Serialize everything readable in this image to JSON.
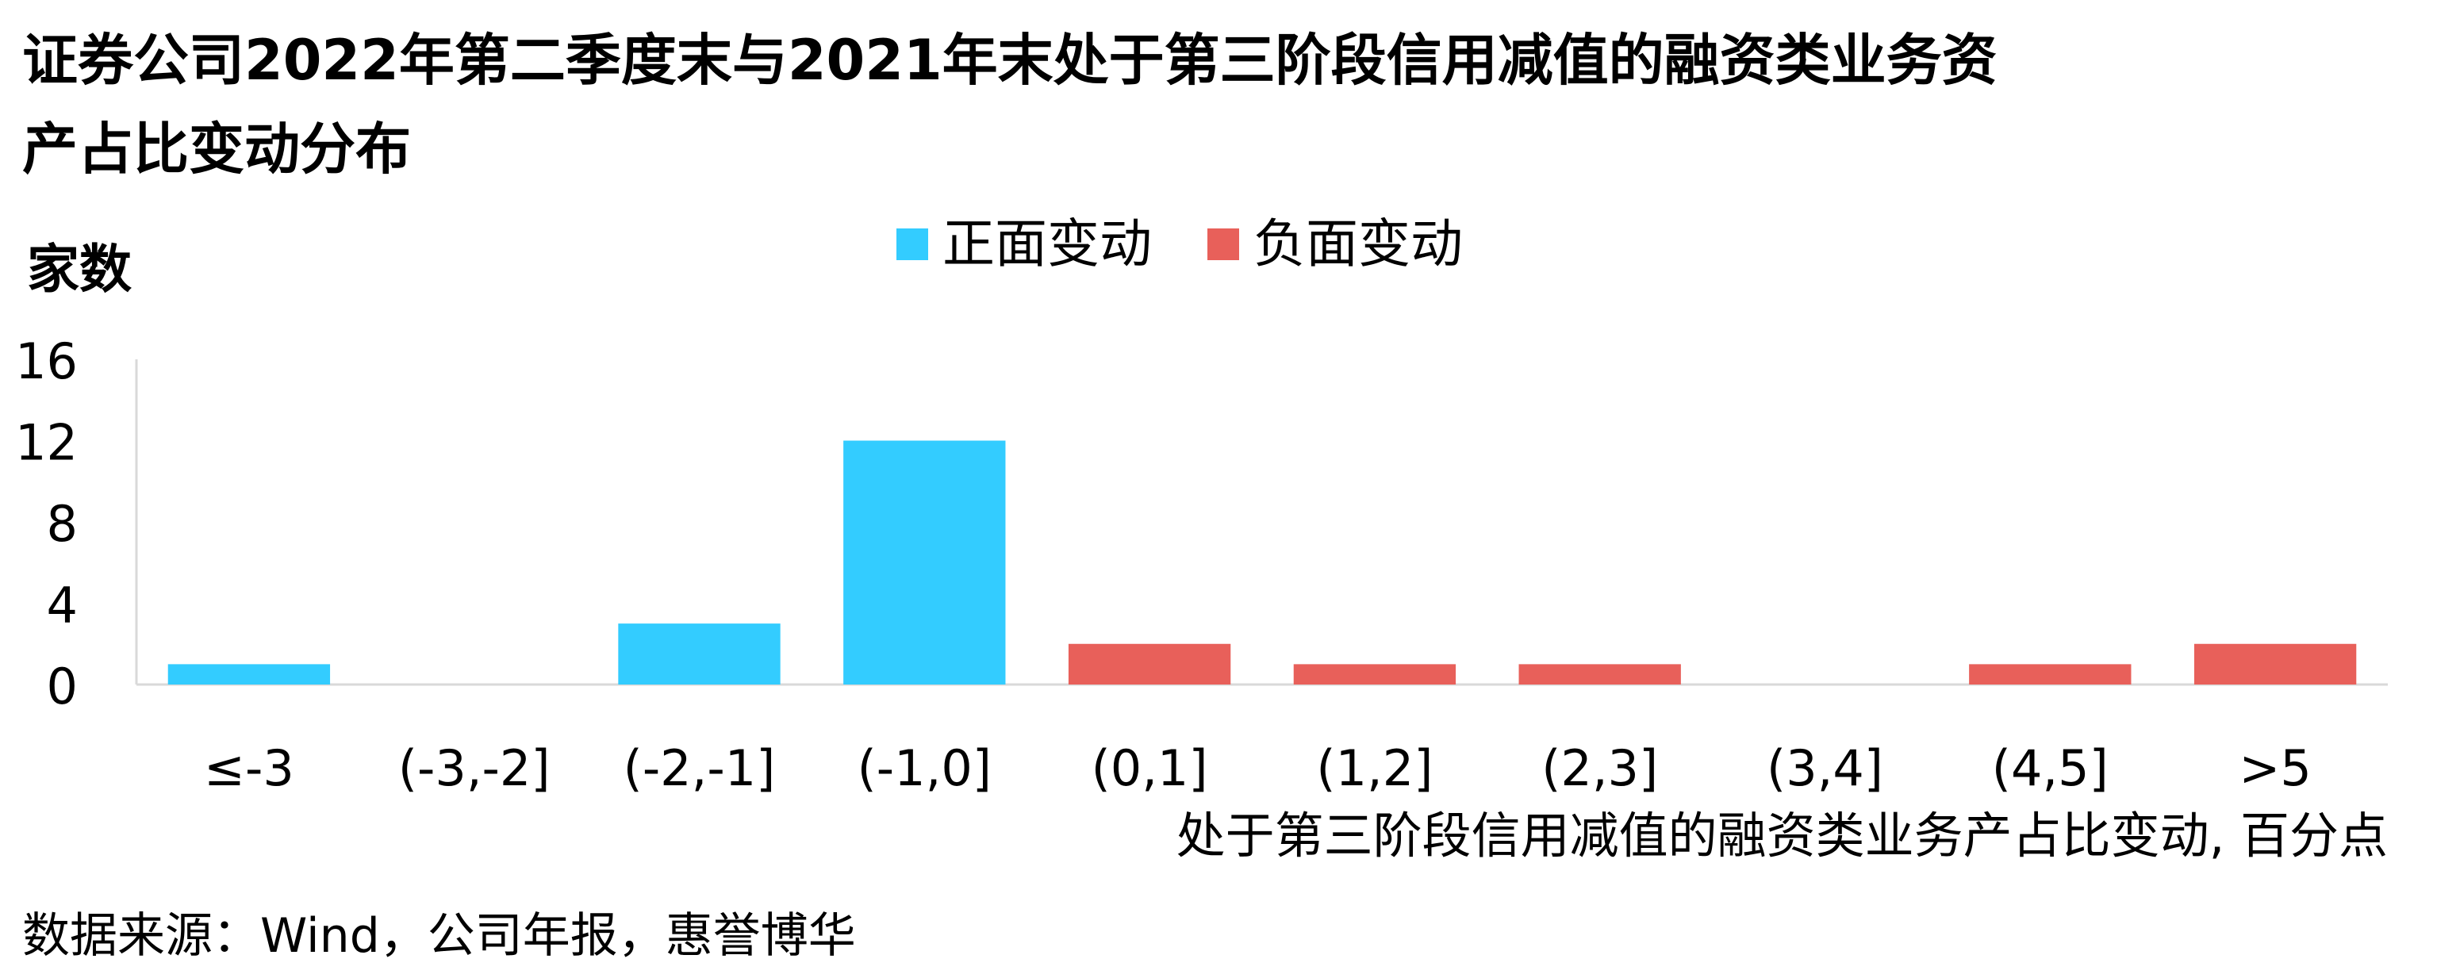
{
  "title": "证券公司2022年第二季度末与2021年末处于第三阶段信用减值的融资类业务资产占比变动分布",
  "source": "数据来源：Wind，公司年报，惠誉博华",
  "chart_data": {
    "type": "bar",
    "title": "证券公司2022年第二季度末与2021年末处于第三阶段信用减值的融资类业务资产占比变动分布",
    "ylabel": "家数",
    "xlabel": "处于第三阶段信用减值的融资类业务产占比变动, 百分点",
    "categories": [
      "≤-3",
      "(-3,-2]",
      "(-2,-1]",
      "(-1,0]",
      "(0,1]",
      "(1,2]",
      "(2,3]",
      "(3,4]",
      "(4,5]",
      ">5"
    ],
    "series": [
      {
        "name": "正面变动",
        "color": "#33CCFF",
        "values": [
          1,
          0,
          3,
          12,
          0,
          0,
          0,
          0,
          0,
          0
        ]
      },
      {
        "name": "负面变动",
        "color": "#E8605A",
        "values": [
          0,
          0,
          0,
          0,
          2,
          1,
          1,
          0,
          1,
          2
        ]
      }
    ],
    "ylim": [
      0,
      16
    ],
    "yticks": [
      0,
      4,
      8,
      12,
      16
    ],
    "grid": false,
    "legend": "top-center"
  }
}
